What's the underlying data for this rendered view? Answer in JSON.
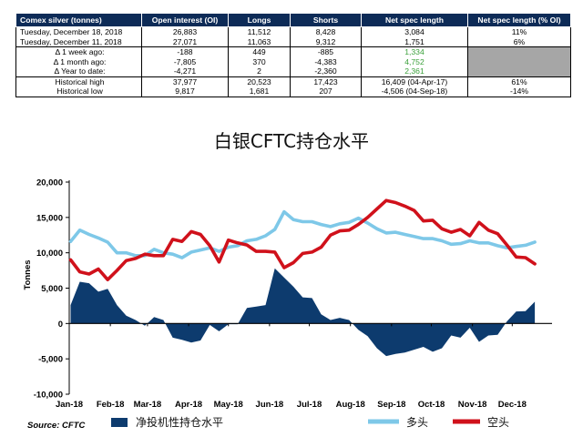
{
  "table": {
    "headers": [
      "Comex silver (tonnes)",
      "Open interest (OI)",
      "Longs",
      "Shorts",
      "Net spec length",
      "Net spec length (% OI)"
    ],
    "rows": [
      [
        "Tuesday, December 18, 2018",
        "26,883",
        "11,512",
        "8,428",
        "3,084",
        "11%"
      ],
      [
        "Tuesday, December 11, 2018",
        "27,071",
        "11,063",
        "9,312",
        "1,751",
        "6%"
      ],
      [
        "Δ 1 week ago:",
        "-188",
        "449",
        "-885",
        "1,334",
        ""
      ],
      [
        "Δ 1 month ago:",
        "-7,805",
        "370",
        "-4,383",
        "4,752",
        ""
      ],
      [
        "Δ Year to date:",
        "-4,271",
        "2",
        "-2,360",
        "2,361",
        ""
      ],
      [
        "Historical high",
        "37,977",
        "20,523",
        "17,423",
        "16,409  (04-Apr-17)",
        "61%"
      ],
      [
        "Historical low",
        "9,817",
        "1,681",
        "207",
        "-4,506  (04-Sep-18)",
        "-14%"
      ]
    ]
  },
  "chart_data": {
    "type": "line",
    "title": "白银CFTC持仓水平",
    "ylabel": "Tonnes",
    "ylim": [
      -10000,
      20000
    ],
    "yticks": [
      -10000,
      -5000,
      0,
      5000,
      10000,
      15000,
      20000
    ],
    "ytick_labels": [
      "-10,000",
      "-5,000",
      "0",
      "5,000",
      "10,000",
      "15,000",
      "20,000"
    ],
    "x_tick_labels": [
      "Jan-18",
      "Feb-18",
      "Mar-18",
      "Apr-18",
      "May-18",
      "Jun-18",
      "Jul-18",
      "Aug-18",
      "Sep-18",
      "Oct-18",
      "Nov-18",
      "Dec-18"
    ],
    "x_dates": [
      "2018-01-02",
      "2018-01-09",
      "2018-01-16",
      "2018-01-23",
      "2018-01-30",
      "2018-02-06",
      "2018-02-13",
      "2018-02-20",
      "2018-02-27",
      "2018-03-06",
      "2018-03-13",
      "2018-03-20",
      "2018-03-27",
      "2018-04-03",
      "2018-04-10",
      "2018-04-17",
      "2018-04-24",
      "2018-05-01",
      "2018-05-08",
      "2018-05-15",
      "2018-05-22",
      "2018-05-29",
      "2018-06-05",
      "2018-06-12",
      "2018-06-19",
      "2018-06-26",
      "2018-07-03",
      "2018-07-10",
      "2018-07-17",
      "2018-07-24",
      "2018-07-31",
      "2018-08-07",
      "2018-08-14",
      "2018-08-21",
      "2018-08-28",
      "2018-09-04",
      "2018-09-11",
      "2018-09-18",
      "2018-09-25",
      "2018-10-02",
      "2018-10-09",
      "2018-10-16",
      "2018-10-23",
      "2018-10-30",
      "2018-11-06",
      "2018-11-13",
      "2018-11-20",
      "2018-11-27",
      "2018-12-04",
      "2018-12-11",
      "2018-12-18"
    ],
    "series": [
      {
        "name": "净投机性持仓水平",
        "kind": "area",
        "color": "#0d3b6e",
        "values": [
          2600,
          5900,
          5700,
          4500,
          4900,
          2600,
          1100,
          500,
          -300,
          900,
          500,
          -2000,
          -2300,
          -2700,
          -2400,
          -200,
          -1100,
          -100,
          -100,
          2200,
          2400,
          2600,
          7800,
          6500,
          5200,
          3700,
          3600,
          1300,
          500,
          800,
          500,
          -900,
          -1800,
          -3500,
          -4600,
          -4300,
          -4100,
          -3700,
          -3300,
          -4000,
          -3500,
          -1700,
          -2000,
          -600,
          -2600,
          -1700,
          -1600,
          300,
          1700,
          1751,
          3084
        ]
      },
      {
        "name": "多头",
        "kind": "line",
        "color": "#7ec8e8",
        "values": [
          11600,
          13200,
          12600,
          12100,
          11500,
          10000,
          10000,
          9600,
          9600,
          10500,
          10000,
          9800,
          9300,
          10100,
          10400,
          10700,
          10200,
          10800,
          11000,
          11700,
          11900,
          12400,
          13300,
          15800,
          14700,
          14400,
          14400,
          14000,
          13700,
          14100,
          14300,
          14900,
          14200,
          13400,
          12800,
          12900,
          12600,
          12300,
          12000,
          12000,
          11700,
          11200,
          11300,
          11700,
          11400,
          11400,
          11000,
          10700,
          10900,
          11063,
          11512
        ]
      },
      {
        "name": "空头",
        "kind": "line",
        "color": "#d0111b",
        "values": [
          9000,
          7300,
          7000,
          7700,
          6200,
          7500,
          8900,
          9200,
          9800,
          9600,
          9600,
          11900,
          11600,
          13000,
          12600,
          11000,
          8700,
          11800,
          11400,
          11100,
          10200,
          10200,
          10100,
          7900,
          8600,
          9900,
          10100,
          10800,
          12500,
          13100,
          13200,
          14000,
          15000,
          16200,
          17400,
          17100,
          16600,
          16000,
          14500,
          14600,
          13400,
          12900,
          13300,
          12400,
          14300,
          13200,
          12700,
          11100,
          9400,
          9312,
          8428
        ]
      }
    ],
    "source": "Source: CFTC",
    "legend_position": "bottom"
  }
}
